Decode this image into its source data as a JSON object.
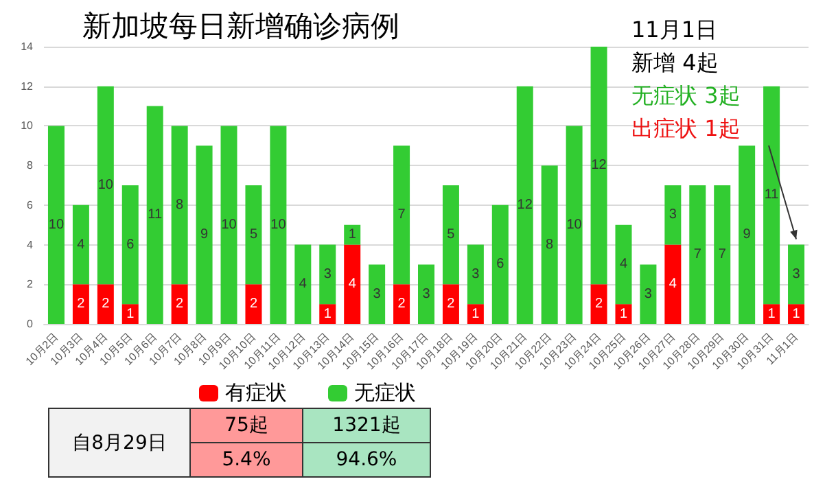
{
  "chart_data": {
    "type": "bar",
    "title": "新加坡每日新增确诊病例",
    "categories": [
      "10月2日",
      "10月3日",
      "10月4日",
      "10月5日",
      "10月6日",
      "10月7日",
      "10月8日",
      "10月9日",
      "10月10日",
      "10月11日",
      "10月12日",
      "10月13日",
      "10月14日",
      "10月15日",
      "10月16日",
      "10月17日",
      "10月18日",
      "10月19日",
      "10月20日",
      "10月21日",
      "10月22日",
      "10月23日",
      "10月24日",
      "10月25日",
      "10月26日",
      "10月27日",
      "10月28日",
      "10月29日",
      "10月30日",
      "10月31日",
      "11月1日"
    ],
    "series": [
      {
        "name": "有症状",
        "color": "#ff0000",
        "values": [
          0,
          2,
          2,
          1,
          0,
          2,
          0,
          0,
          2,
          0,
          0,
          1,
          4,
          0,
          2,
          0,
          2,
          1,
          0,
          0,
          0,
          0,
          2,
          1,
          0,
          4,
          0,
          0,
          0,
          1,
          1
        ],
        "value_labels": [
          null,
          "2",
          "2",
          "1",
          null,
          "2",
          null,
          null,
          "2",
          null,
          null,
          "1",
          "4",
          null,
          "2",
          null,
          "2",
          "1",
          null,
          null,
          null,
          null,
          "2",
          "1",
          null,
          "4",
          null,
          null,
          null,
          "1",
          "1"
        ]
      },
      {
        "name": "无症状",
        "color": "#33cc33",
        "values": [
          10,
          4,
          10,
          6,
          11,
          8,
          9,
          10,
          5,
          10,
          4,
          3,
          1,
          3,
          7,
          3,
          5,
          3,
          6,
          12,
          8,
          10,
          12,
          4,
          3,
          3,
          7,
          7,
          9,
          11,
          3
        ],
        "value_labels": [
          "10",
          "4",
          "10",
          "6",
          "11",
          "8",
          "9",
          "10",
          "5",
          "10",
          "4",
          "3",
          "1",
          "3",
          "7",
          "3",
          "5",
          "3",
          "6",
          "12",
          "8",
          "10",
          "12",
          "4",
          "3",
          "3",
          "7",
          "7",
          "9",
          "11",
          "3"
        ]
      }
    ],
    "stacked": true,
    "ylim": [
      0,
      14
    ],
    "yticks": [
      0,
      2,
      4,
      6,
      8,
      10,
      12,
      14
    ],
    "grid": "y",
    "legend": "bottom",
    "annotations": [
      "11月1日",
      "新增 4起",
      "无症状 3起",
      "出症状 1起",
      "自8月29日",
      "75起",
      "1321起",
      "5.4%",
      "94.6%"
    ]
  }
}
